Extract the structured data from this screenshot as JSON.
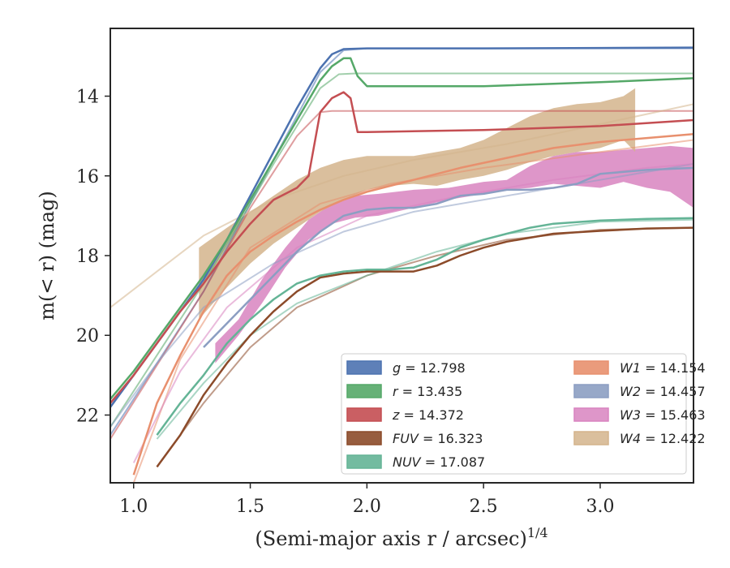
{
  "chart_data": {
    "type": "line",
    "title": "",
    "xlabel": "(Semi-major axis r / arcsec)",
    "xlabel_sup": "1/4",
    "ylabel": "m(< r) (mag)",
    "xlim": [
      0.9,
      3.4
    ],
    "ylim": [
      23.7,
      12.3
    ],
    "y_inverted": true,
    "x_ticks": [
      1.0,
      1.5,
      2.0,
      2.5,
      3.0
    ],
    "x_tick_labels": [
      "1.0",
      "1.5",
      "2.0",
      "2.5",
      "3.0"
    ],
    "y_ticks": [
      14,
      16,
      18,
      20,
      22
    ],
    "y_tick_labels": [
      "14",
      "16",
      "18",
      "20",
      "22"
    ],
    "legend_placement": "lower-right",
    "series": [
      {
        "name": "g = 12.798",
        "label_var": "g",
        "label_val": "= 12.798",
        "color": "#4c72b0",
        "kind": "line",
        "x": [
          0.9,
          1.0,
          1.1,
          1.2,
          1.3,
          1.4,
          1.5,
          1.6,
          1.7,
          1.8,
          1.85,
          1.9,
          2.0,
          2.5,
          3.0,
          3.4
        ],
        "y": [
          21.8,
          21.0,
          20.2,
          19.4,
          18.6,
          17.6,
          16.5,
          15.4,
          14.3,
          13.3,
          12.95,
          12.82,
          12.8,
          12.8,
          12.79,
          12.78
        ]
      },
      {
        "name": "r = 13.435",
        "label_var": "r",
        "label_val": "= 13.435",
        "color": "#55a868",
        "kind": "line",
        "x": [
          0.9,
          1.0,
          1.1,
          1.2,
          1.3,
          1.4,
          1.5,
          1.6,
          1.7,
          1.8,
          1.85,
          1.9,
          1.93,
          1.96,
          2.0,
          2.5,
          3.0,
          3.4
        ],
        "y": [
          21.6,
          20.9,
          20.1,
          19.3,
          18.5,
          17.6,
          16.6,
          15.6,
          14.6,
          13.6,
          13.25,
          13.05,
          13.05,
          13.5,
          13.75,
          13.75,
          13.65,
          13.55
        ]
      },
      {
        "name": "z = 14.372",
        "label_var": "z",
        "label_val": "= 14.372",
        "color": "#c44e52",
        "kind": "line",
        "x": [
          0.9,
          1.0,
          1.1,
          1.2,
          1.3,
          1.4,
          1.5,
          1.6,
          1.7,
          1.75,
          1.8,
          1.85,
          1.9,
          1.93,
          1.96,
          2.0,
          2.5,
          3.0,
          3.4
        ],
        "y": [
          21.7,
          21.0,
          20.2,
          19.4,
          18.7,
          17.9,
          17.2,
          16.6,
          16.3,
          16.0,
          14.4,
          14.05,
          13.9,
          14.05,
          14.9,
          14.9,
          14.85,
          14.75,
          14.6
        ]
      },
      {
        "name": "FUV = 16.323",
        "label_var": "FUV",
        "label_val": "= 16.323",
        "color": "#8c4b2a",
        "kind": "line",
        "x": [
          1.1,
          1.2,
          1.3,
          1.4,
          1.5,
          1.6,
          1.7,
          1.8,
          1.9,
          2.0,
          2.1,
          2.2,
          2.3,
          2.4,
          2.5,
          2.6,
          2.7,
          2.8,
          3.0,
          3.2,
          3.4
        ],
        "y": [
          23.3,
          22.5,
          21.5,
          20.7,
          20.0,
          19.4,
          18.9,
          18.55,
          18.45,
          18.4,
          18.4,
          18.4,
          18.25,
          18.0,
          17.8,
          17.65,
          17.55,
          17.45,
          17.38,
          17.32,
          17.3
        ]
      },
      {
        "name": "NUV = 17.087",
        "label_var": "NUV",
        "label_val": "= 17.087",
        "color": "#64b496",
        "kind": "line",
        "x": [
          1.1,
          1.2,
          1.3,
          1.4,
          1.5,
          1.6,
          1.7,
          1.8,
          1.9,
          2.0,
          2.1,
          2.2,
          2.3,
          2.4,
          2.5,
          2.6,
          2.7,
          2.8,
          3.0,
          3.2,
          3.4
        ],
        "y": [
          22.5,
          21.7,
          21.0,
          20.2,
          19.6,
          19.1,
          18.7,
          18.5,
          18.4,
          18.35,
          18.35,
          18.3,
          18.1,
          17.8,
          17.6,
          17.45,
          17.3,
          17.2,
          17.12,
          17.08,
          17.06
        ]
      },
      {
        "name": "W1 = 14.154",
        "label_var": "W1",
        "label_val": "= 14.154",
        "color": "#e8906e",
        "kind": "line",
        "x": [
          1.0,
          1.1,
          1.2,
          1.3,
          1.4,
          1.5,
          1.6,
          1.7,
          1.8,
          1.9,
          2.0,
          2.2,
          2.4,
          2.6,
          2.8,
          3.0,
          3.2,
          3.4
        ],
        "y": [
          23.5,
          21.7,
          20.5,
          19.4,
          18.5,
          17.9,
          17.5,
          17.15,
          16.85,
          16.6,
          16.4,
          16.1,
          15.8,
          15.55,
          15.3,
          15.15,
          15.05,
          14.95
        ]
      },
      {
        "name": "W2 = 14.457",
        "label_var": "W2",
        "label_val": "= 14.457",
        "color": "#8c9ec2",
        "kind": "line",
        "x": [
          1.3,
          1.4,
          1.5,
          1.6,
          1.7,
          1.8,
          1.9,
          2.0,
          2.1,
          2.2,
          2.3,
          2.4,
          2.5,
          2.6,
          2.7,
          2.8,
          2.9,
          3.0,
          3.2,
          3.4
        ],
        "y": [
          20.3,
          19.7,
          19.1,
          18.5,
          17.9,
          17.4,
          17.0,
          16.85,
          16.8,
          16.8,
          16.7,
          16.5,
          16.45,
          16.35,
          16.35,
          16.3,
          16.2,
          15.95,
          15.85,
          15.8
        ]
      },
      {
        "name": "W3 = 15.463",
        "label_var": "W3",
        "label_val": "= 15.463",
        "color": "#d884c0",
        "kind": "band",
        "x": [
          1.35,
          1.45,
          1.55,
          1.65,
          1.75,
          1.85,
          1.95,
          2.05,
          2.2,
          2.35,
          2.5,
          2.6,
          2.7,
          2.8,
          2.9,
          3.0,
          3.1,
          3.2,
          3.3,
          3.4
        ],
        "y_low": [
          20.2,
          19.6,
          18.6,
          17.8,
          17.1,
          16.7,
          16.5,
          16.45,
          16.35,
          16.3,
          16.15,
          16.1,
          15.75,
          15.5,
          15.4,
          15.4,
          15.35,
          15.3,
          15.25,
          15.3
        ],
        "y_high": [
          20.7,
          20.0,
          19.2,
          18.3,
          17.6,
          17.2,
          17.05,
          17.0,
          16.8,
          16.6,
          16.45,
          16.35,
          16.3,
          16.2,
          16.25,
          16.3,
          16.15,
          16.3,
          16.4,
          16.8
        ]
      },
      {
        "name": "W4 = 12.422",
        "label_var": "W4",
        "label_val": "= 12.422",
        "color": "#d4b48c",
        "kind": "band",
        "x": [
          1.28,
          1.4,
          1.5,
          1.6,
          1.7,
          1.8,
          1.9,
          2.0,
          2.1,
          2.2,
          2.3,
          2.4,
          2.5,
          2.6,
          2.7,
          2.8,
          2.9,
          3.0,
          3.1,
          3.15
        ],
        "y_low": [
          17.8,
          17.3,
          16.9,
          16.5,
          16.1,
          15.8,
          15.6,
          15.5,
          15.5,
          15.5,
          15.4,
          15.3,
          15.1,
          14.8,
          14.5,
          14.3,
          14.2,
          14.15,
          14.0,
          13.8
        ],
        "y_high": [
          19.6,
          18.8,
          18.2,
          17.7,
          17.3,
          16.9,
          16.6,
          16.35,
          16.25,
          16.2,
          16.25,
          16.1,
          16.0,
          15.85,
          15.65,
          15.5,
          15.4,
          15.3,
          15.1,
          15.4
        ]
      }
    ],
    "models": [
      {
        "series": "g",
        "color": "#4c72b0",
        "x": [
          0.9,
          1.3,
          1.6,
          1.8,
          1.9,
          2.0,
          3.4
        ],
        "y": [
          22.5,
          18.9,
          15.6,
          13.4,
          12.85,
          12.8,
          12.8
        ]
      },
      {
        "series": "r",
        "color": "#55a868",
        "x": [
          0.9,
          1.3,
          1.6,
          1.8,
          1.88,
          1.95,
          3.4
        ],
        "y": [
          22.3,
          18.7,
          15.7,
          13.8,
          13.45,
          13.43,
          13.43
        ]
      },
      {
        "series": "z",
        "color": "#c44e52",
        "x": [
          0.9,
          1.3,
          1.5,
          1.7,
          1.8,
          1.85,
          3.4
        ],
        "y": [
          22.6,
          18.9,
          16.8,
          15.0,
          14.4,
          14.37,
          14.37
        ]
      },
      {
        "series": "FUV",
        "color": "#8c4b2a",
        "x": [
          1.1,
          1.3,
          1.5,
          1.7,
          2.0,
          2.3,
          2.6,
          3.0,
          3.4
        ],
        "y": [
          23.3,
          21.7,
          20.3,
          19.3,
          18.5,
          18.0,
          17.6,
          17.35,
          17.3
        ]
      },
      {
        "series": "NUV",
        "color": "#64b496",
        "x": [
          1.1,
          1.3,
          1.5,
          1.7,
          2.0,
          2.3,
          2.6,
          3.0,
          3.4
        ],
        "y": [
          22.6,
          21.2,
          20.0,
          19.2,
          18.5,
          17.9,
          17.45,
          17.15,
          17.1
        ]
      },
      {
        "series": "W1",
        "color": "#e8906e",
        "x": [
          1.0,
          1.2,
          1.5,
          1.8,
          2.1,
          2.5,
          3.0,
          3.4
        ],
        "y": [
          23.7,
          20.6,
          17.8,
          16.7,
          16.2,
          15.8,
          15.4,
          15.1
        ]
      },
      {
        "series": "W2",
        "color": "#8c9ec2",
        "x": [
          0.9,
          1.1,
          1.3,
          1.6,
          1.9,
          2.2,
          2.6,
          3.0,
          3.4
        ],
        "y": [
          22.3,
          20.7,
          19.3,
          18.2,
          17.4,
          16.9,
          16.5,
          16.1,
          15.7
        ]
      },
      {
        "series": "W3",
        "color": "#d884c0",
        "x": [
          1.0,
          1.2,
          1.4,
          1.7,
          2.0,
          2.4,
          2.8,
          3.2,
          3.4
        ],
        "y": [
          23.2,
          20.9,
          19.3,
          17.8,
          17.0,
          16.5,
          16.1,
          15.8,
          15.7
        ]
      },
      {
        "series": "W4",
        "color": "#d4b48c",
        "x": [
          0.9,
          1.1,
          1.3,
          1.6,
          1.9,
          2.2,
          2.6,
          3.0,
          3.4
        ],
        "y": [
          19.3,
          18.4,
          17.5,
          16.6,
          16.0,
          15.6,
          15.2,
          14.7,
          14.2
        ]
      }
    ]
  }
}
